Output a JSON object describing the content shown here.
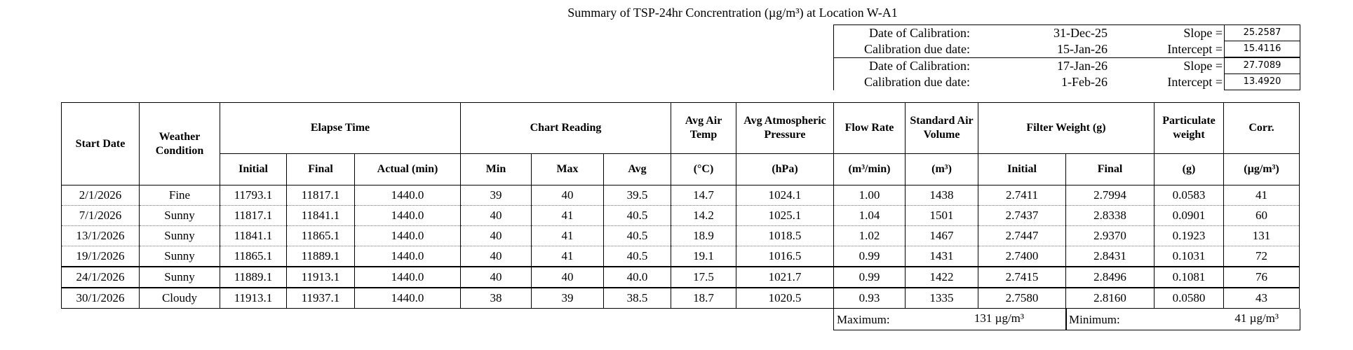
{
  "title": "Summary of TSP-24hr Concrentration (µg/m³) at Location W-A1",
  "calibration": [
    {
      "date_label": "Date of Calibration:",
      "date": "31-Dec-25",
      "param_label": "Slope =",
      "value": "25.2587"
    },
    {
      "date_label": "Calibration due date:",
      "date": "15-Jan-26",
      "param_label": "Intercept =",
      "value": "15.4116"
    },
    {
      "date_label": "Date of Calibration:",
      "date": "17-Jan-26",
      "param_label": "Slope =",
      "value": "27.7089"
    },
    {
      "date_label": "Calibration due date:",
      "date": "1-Feb-26",
      "param_label": "Intercept =",
      "value": "13.4920"
    }
  ],
  "headers": {
    "start_date": "Start Date",
    "weather": "Weather Condition",
    "elapse": "Elapse Time",
    "chart": "Chart Reading",
    "temp": "Avg Air Temp",
    "pressure": "Avg Atmospheric Pressure",
    "flow": "Flow Rate",
    "volume": "Standard Air Volume",
    "filter": "Filter Weight (g)",
    "particulate": "Particulate weight",
    "corr": "Corr.",
    "initial": "Initial",
    "final": "Final",
    "actual": "Actual (min)",
    "min": "Min",
    "max": "Max",
    "avg": "Avg",
    "temp_unit": "(°C)",
    "pressure_unit": "(hPa)",
    "flow_unit": "(m³/min)",
    "volume_unit": "(m³)",
    "f_initial": "Initial",
    "f_final": "Final",
    "part_unit": "(g)",
    "corr_unit": "(µg/m³)"
  },
  "rows": [
    [
      "2/1/2026",
      "Fine",
      "11793.1",
      "11817.1",
      "1440.0",
      "39",
      "40",
      "39.5",
      "14.7",
      "1024.1",
      "1.00",
      "1438",
      "2.7411",
      "2.7994",
      "0.0583",
      "41"
    ],
    [
      "7/1/2026",
      "Sunny",
      "11817.1",
      "11841.1",
      "1440.0",
      "40",
      "41",
      "40.5",
      "14.2",
      "1025.1",
      "1.04",
      "1501",
      "2.7437",
      "2.8338",
      "0.0901",
      "60"
    ],
    [
      "13/1/2026",
      "Sunny",
      "11841.1",
      "11865.1",
      "1440.0",
      "40",
      "41",
      "40.5",
      "18.9",
      "1018.5",
      "1.02",
      "1467",
      "2.7447",
      "2.9370",
      "0.1923",
      "131"
    ],
    [
      "19/1/2026",
      "Sunny",
      "11865.1",
      "11889.1",
      "1440.0",
      "40",
      "41",
      "40.5",
      "19.1",
      "1016.5",
      "0.99",
      "1431",
      "2.7400",
      "2.8431",
      "0.1031",
      "72"
    ],
    [
      "24/1/2026",
      "Sunny",
      "11889.1",
      "11913.1",
      "1440.0",
      "40",
      "40",
      "40.0",
      "17.5",
      "1021.7",
      "0.99",
      "1422",
      "2.7415",
      "2.8496",
      "0.1081",
      "76"
    ],
    [
      "30/1/2026",
      "Cloudy",
      "11913.1",
      "11937.1",
      "1440.0",
      "38",
      "39",
      "38.5",
      "18.7",
      "1020.5",
      "0.93",
      "1335",
      "2.7580",
      "2.8160",
      "0.0580",
      "43"
    ]
  ],
  "summary": {
    "max_label": "Maximum:",
    "max_value": "131 µg/m³",
    "min_label": "Minimum:",
    "min_value": "41 µg/m³"
  }
}
